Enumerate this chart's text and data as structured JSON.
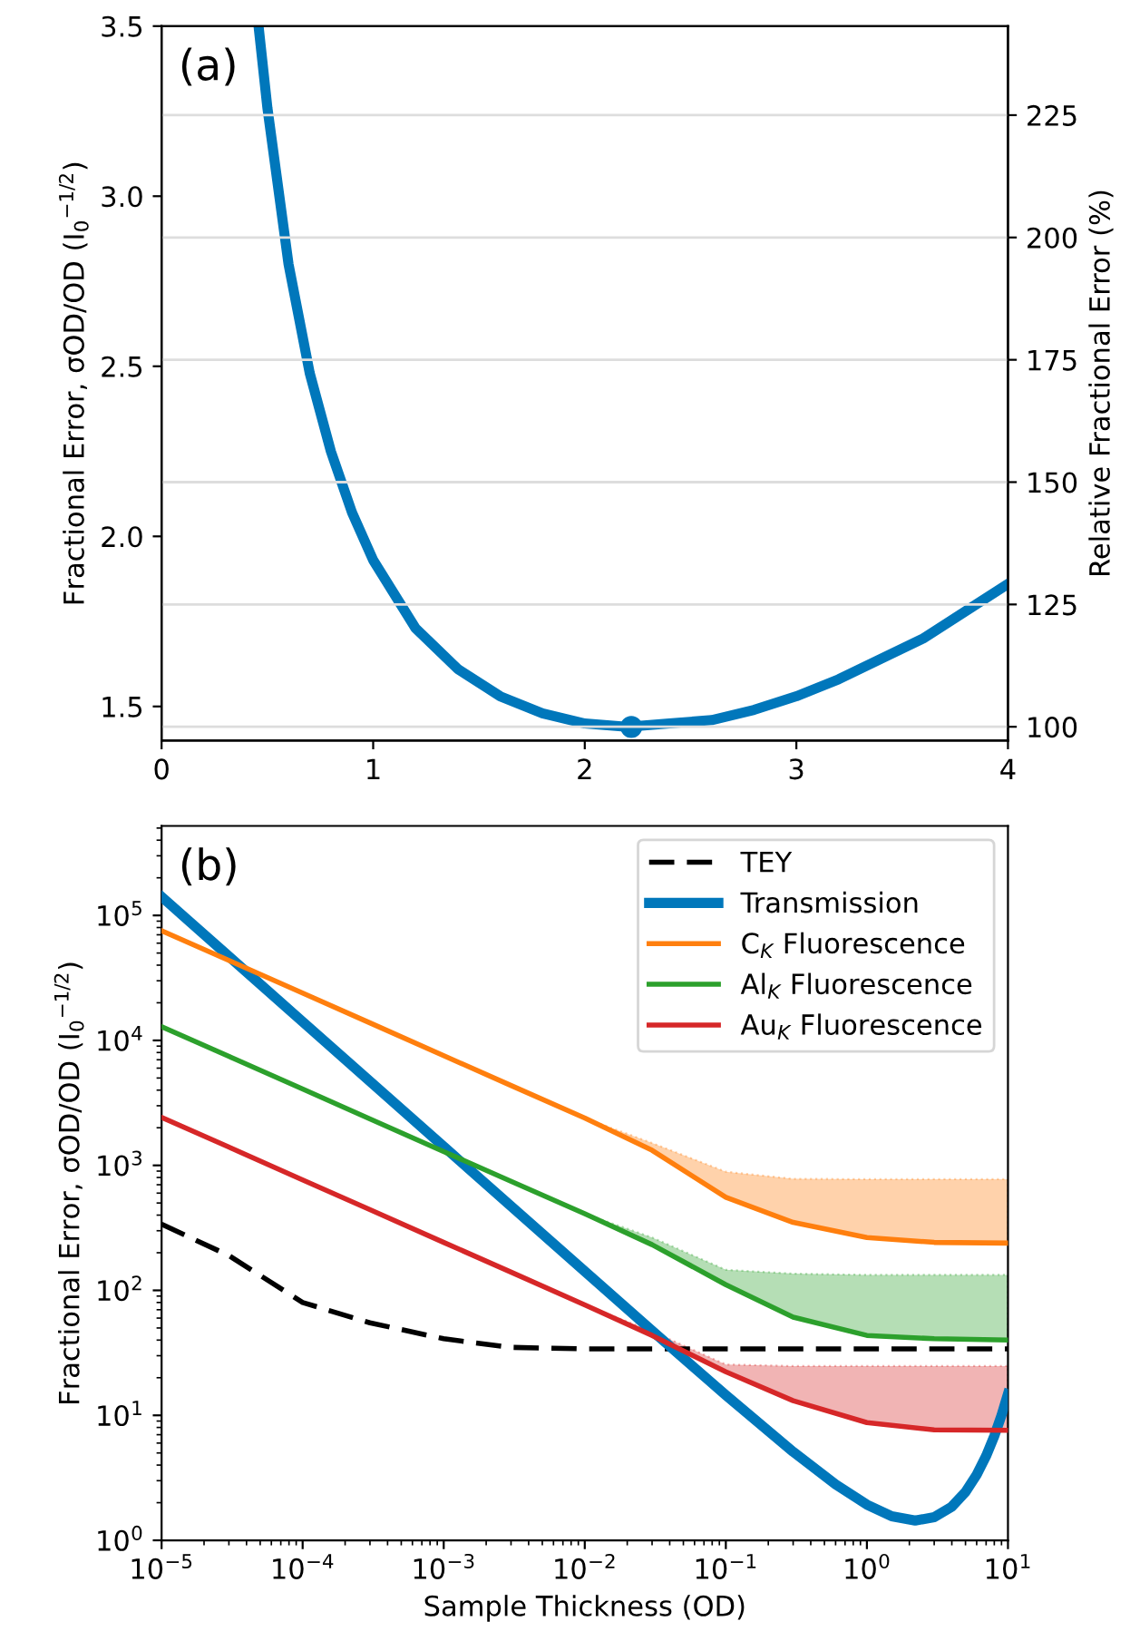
{
  "chart_data": [
    {
      "type": "line",
      "annotations": [
        "(a)"
      ],
      "ylabel": "Fractional Error, σOD/OD (I$_{0}$$^{−1/2}$)",
      "y2label": "Relative Fractional Error (%)",
      "xlim": [
        0,
        4
      ],
      "xticks": [
        0,
        1,
        2,
        3,
        4
      ],
      "ylim": [
        1.4,
        3.5
      ],
      "yticks": [
        1.5,
        {
          "value": 2,
          "label": "2.0"
        },
        2.5,
        {
          "value": 3,
          "label": "3.0"
        },
        3.5
      ],
      "y2lim": [
        97.2,
        243.2
      ],
      "y2ticks": [
        100,
        125,
        150,
        175,
        200,
        225
      ],
      "grid": "y",
      "legend": false,
      "series": [
        {
          "color": "#0077bb",
          "x": [
            0.46,
            0.5,
            0.6,
            0.7,
            0.8,
            0.9,
            1.0,
            1.2,
            1.4,
            1.6,
            1.8,
            2.0,
            2.2,
            2.4,
            2.6,
            2.8,
            3.0,
            3.2,
            3.4,
            3.6,
            3.8,
            4.0
          ],
          "values": [
            3.49,
            3.26,
            2.8,
            2.48,
            2.25,
            2.07,
            1.93,
            1.73,
            1.61,
            1.53,
            1.48,
            1.45,
            1.44,
            1.45,
            1.46,
            1.49,
            1.53,
            1.58,
            1.64,
            1.7,
            1.78,
            1.86
          ]
        },
        {
          "type": "scatter",
          "color": "#0077bb",
          "marker": "circle",
          "x": [
            2.22
          ],
          "values": [
            1.44
          ]
        }
      ]
    },
    {
      "type": "line",
      "annotations": [
        "(b)"
      ],
      "xlabel": "Sample Thickness (OD)",
      "ylabel": "Fractional Error, σOD/OD (I$_{0}$$^{−1/2}$)",
      "log": "xy",
      "legend": "top right",
      "xlim": [
        1e-05,
        10
      ],
      "xticks": [
        {
          "value": 1e-05,
          "label": "10$^{−5}$"
        },
        {
          "value": 0.0001,
          "label": "10$^{−4}$"
        },
        {
          "value": 0.001,
          "label": "10$^{−3}$"
        },
        {
          "value": 0.01,
          "label": "10$^{−2}$"
        },
        {
          "value": 0.1,
          "label": "10$^{−1}$"
        },
        {
          "value": 1,
          "label": "10$^{0}$"
        },
        {
          "value": 10,
          "label": "10$^{1}$"
        }
      ],
      "ylim": [
        1,
        520000
      ],
      "yticks": [
        {
          "value": 1,
          "label": "10$^{0}$"
        },
        {
          "value": 10,
          "label": "10$^{1}$"
        },
        {
          "value": 100,
          "label": "10$^{2}$"
        },
        {
          "value": 1000,
          "label": "10$^{3}$"
        },
        {
          "value": 10000,
          "label": "10$^{4}$"
        },
        {
          "value": 100000,
          "label": "10$^{5}$"
        }
      ],
      "x": [
        1e-05,
        3e-05,
        0.0001,
        0.0003,
        0.001,
        0.003,
        0.01,
        0.03,
        0.1,
        0.3,
        1,
        3,
        10
      ],
      "series": [
        {
          "name": "TEY",
          "line_style": "dashed",
          "color": "#000000",
          "values": [
            338,
            190,
            80,
            55,
            41,
            35,
            34,
            34,
            34,
            34,
            34,
            34,
            34
          ]
        },
        {
          "name": "Transmission",
          "color": "#0077bb",
          "x": [
            1e-05,
            0.0001,
            0.001,
            0.01,
            0.03,
            0.1,
            0.3,
            0.6,
            1,
            1.5,
            2.2,
            3,
            4,
            5,
            6,
            7,
            8,
            9,
            10
          ],
          "values": [
            141000,
            14100,
            1414,
            142,
            47.5,
            14.5,
            5.11,
            2.8,
            1.93,
            1.56,
            1.44,
            1.53,
            1.86,
            2.44,
            3.35,
            4.73,
            6.83,
            10.0,
            14.8
          ]
        },
        {
          "name": "C$_{K}$ Fluorescence",
          "color": "#ff7f0e",
          "values": [
            75500,
            43600,
            23900,
            13800,
            7550,
            4360,
            2390,
            1320,
            555,
            350,
            265,
            242,
            239
          ],
          "lower": [
            null,
            null,
            null,
            null,
            null,
            null,
            2390,
            1320,
            555,
            350,
            265,
            242,
            239
          ],
          "upper": [
            null,
            null,
            null,
            null,
            null,
            null,
            2390,
            1510,
            890,
            780,
            776,
            776,
            776
          ]
        },
        {
          "name": "Al$_{K}$ Fluorescence",
          "color": "#2ca02c",
          "values": [
            12900,
            7450,
            4080,
            2350,
            1290,
            745,
            410,
            232,
            111,
            61,
            43.6,
            41,
            40
          ],
          "lower": [
            null,
            null,
            null,
            null,
            null,
            null,
            410,
            232,
            111,
            61,
            43.6,
            41,
            40
          ],
          "upper": [
            null,
            null,
            null,
            null,
            null,
            null,
            410,
            265,
            146,
            136,
            133,
            133,
            133
          ]
        },
        {
          "name": "Au$_{K}$ Fluorescence",
          "color": "#d62728",
          "values": [
            2420,
            1400,
            765,
            442,
            242,
            140,
            76.5,
            43.6,
            22.3,
            13.1,
            8.75,
            7.65,
            7.6
          ],
          "lower": [
            null,
            null,
            null,
            null,
            null,
            null,
            76.5,
            43.6,
            22.3,
            13.1,
            8.75,
            7.65,
            7.6
          ],
          "upper": [
            null,
            null,
            null,
            null,
            null,
            null,
            76.5,
            47,
            25.5,
            24.8,
            24.8,
            24.8,
            24.8
          ]
        }
      ]
    }
  ]
}
